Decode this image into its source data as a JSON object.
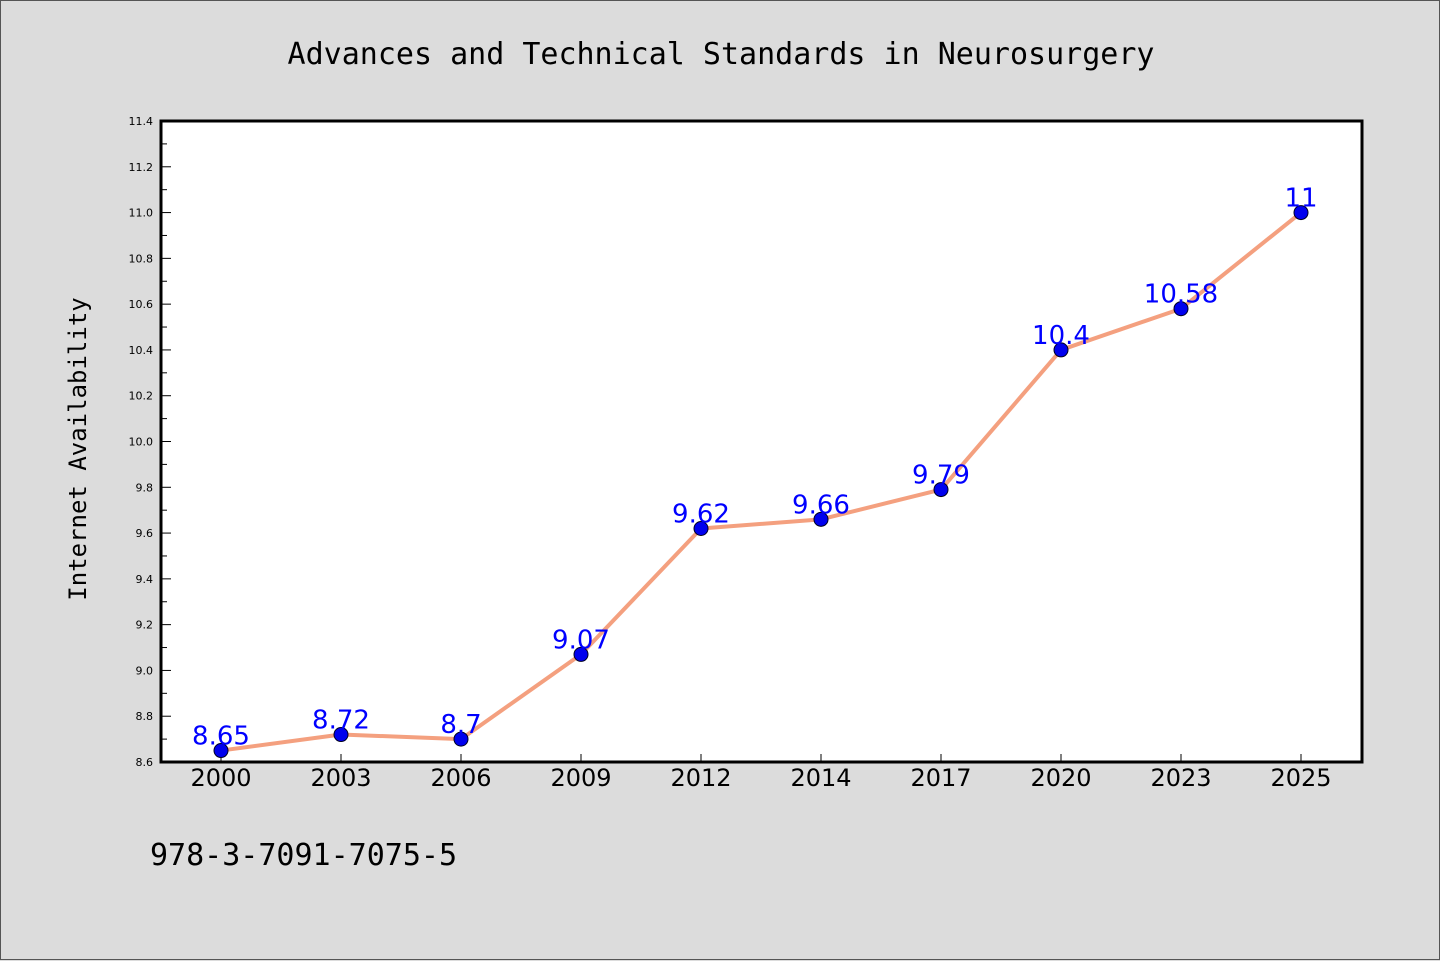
{
  "chart_data": {
    "type": "line",
    "title": "Advances and Technical Standards in Neurosurgery",
    "xlabel": "",
    "ylabel": "Internet Availability",
    "categories": [
      "2000",
      "2003",
      "2006",
      "2009",
      "2012",
      "2014",
      "2017",
      "2020",
      "2023",
      "2025"
    ],
    "series": [
      {
        "values": [
          8.65,
          8.72,
          8.7,
          9.07,
          9.62,
          9.66,
          9.79,
          10.4,
          10.58,
          11
        ],
        "data_labels": [
          "8.65",
          "8.72",
          "8.7",
          "9.07",
          "9.62",
          "9.66",
          "9.79",
          "10.4",
          "10.58",
          "11"
        ]
      }
    ],
    "ylim": [
      8.6,
      11.4
    ],
    "yticks": [
      "8.6",
      "8.8",
      "9.0",
      "9.2",
      "9.4",
      "9.6",
      "9.8",
      "10.0",
      "10.2",
      "10.4",
      "10.6",
      "10.8",
      "11.0",
      "11.2",
      "11.4"
    ],
    "grid": false,
    "line_color": "#f4a07f",
    "marker_color": "#0000ee",
    "label_color": "#0000ff"
  },
  "footer": {
    "isbn": "978-3-7091-7075-5"
  }
}
